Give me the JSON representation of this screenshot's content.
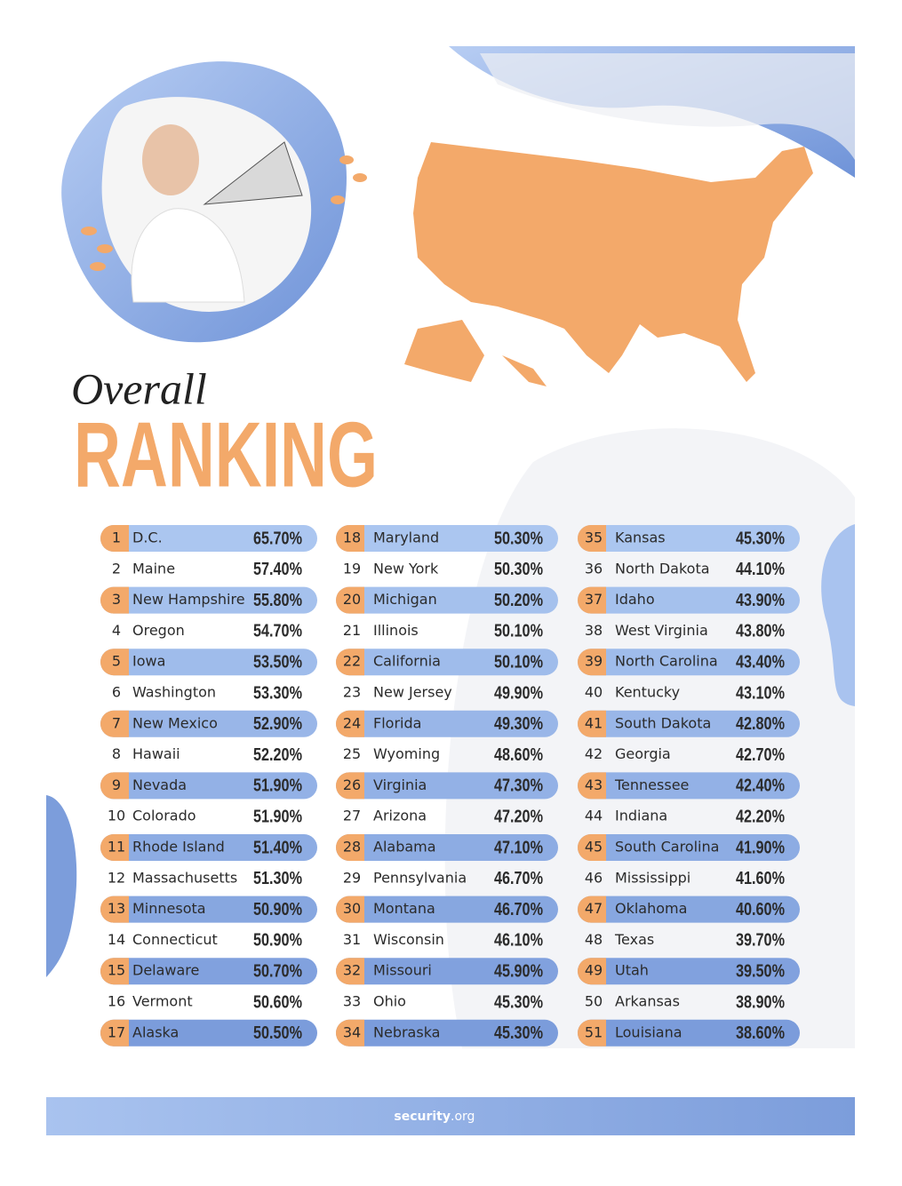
{
  "header": {
    "title_line1": "Overall",
    "title_line2": "RANKING"
  },
  "table": {
    "rows": [
      {
        "rank": 1,
        "state": "D.C.",
        "score": "65.70%"
      },
      {
        "rank": 2,
        "state": "Maine",
        "score": "57.40%"
      },
      {
        "rank": 3,
        "state": "New Hampshire",
        "score": "55.80%"
      },
      {
        "rank": 4,
        "state": "Oregon",
        "score": "54.70%"
      },
      {
        "rank": 5,
        "state": "Iowa",
        "score": "53.50%"
      },
      {
        "rank": 6,
        "state": "Washington",
        "score": "53.30%"
      },
      {
        "rank": 7,
        "state": "New Mexico",
        "score": "52.90%"
      },
      {
        "rank": 8,
        "state": "Hawaii",
        "score": "52.20%"
      },
      {
        "rank": 9,
        "state": "Nevada",
        "score": "51.90%"
      },
      {
        "rank": 10,
        "state": "Colorado",
        "score": "51.90%"
      },
      {
        "rank": 11,
        "state": "Rhode Island",
        "score": "51.40%"
      },
      {
        "rank": 12,
        "state": "Massachusetts",
        "score": "51.30%"
      },
      {
        "rank": 13,
        "state": "Minnesota",
        "score": "50.90%"
      },
      {
        "rank": 14,
        "state": "Connecticut",
        "score": "50.90%"
      },
      {
        "rank": 15,
        "state": "Delaware",
        "score": "50.70%"
      },
      {
        "rank": 16,
        "state": "Vermont",
        "score": "50.60%"
      },
      {
        "rank": 17,
        "state": "Alaska",
        "score": "50.50%"
      },
      {
        "rank": 18,
        "state": "Maryland",
        "score": "50.30%"
      },
      {
        "rank": 19,
        "state": "New York",
        "score": "50.30%"
      },
      {
        "rank": 20,
        "state": "Michigan",
        "score": "50.20%"
      },
      {
        "rank": 21,
        "state": "Illinois",
        "score": "50.10%"
      },
      {
        "rank": 22,
        "state": "California",
        "score": "50.10%"
      },
      {
        "rank": 23,
        "state": "New Jersey",
        "score": "49.90%"
      },
      {
        "rank": 24,
        "state": "Florida",
        "score": "49.30%"
      },
      {
        "rank": 25,
        "state": "Wyoming",
        "score": "48.60%"
      },
      {
        "rank": 26,
        "state": "Virginia",
        "score": "47.30%"
      },
      {
        "rank": 27,
        "state": "Arizona",
        "score": "47.20%"
      },
      {
        "rank": 28,
        "state": "Alabama",
        "score": "47.10%"
      },
      {
        "rank": 29,
        "state": "Pennsylvania",
        "score": "46.70%"
      },
      {
        "rank": 30,
        "state": "Montana",
        "score": "46.70%"
      },
      {
        "rank": 31,
        "state": "Wisconsin",
        "score": "46.10%"
      },
      {
        "rank": 32,
        "state": "Missouri",
        "score": "45.90%"
      },
      {
        "rank": 33,
        "state": "Ohio",
        "score": "45.30%"
      },
      {
        "rank": 34,
        "state": "Nebraska",
        "score": "45.30%"
      },
      {
        "rank": 35,
        "state": "Kansas",
        "score": "45.30%"
      },
      {
        "rank": 36,
        "state": "North Dakota",
        "score": "44.10%"
      },
      {
        "rank": 37,
        "state": "Idaho",
        "score": "43.90%"
      },
      {
        "rank": 38,
        "state": "West Virginia",
        "score": "43.80%"
      },
      {
        "rank": 39,
        "state": "North Carolina",
        "score": "43.40%"
      },
      {
        "rank": 40,
        "state": "Kentucky",
        "score": "43.10%"
      },
      {
        "rank": 41,
        "state": "South Dakota",
        "score": "42.80%"
      },
      {
        "rank": 42,
        "state": "Georgia",
        "score": "42.70%"
      },
      {
        "rank": 43,
        "state": "Tennessee",
        "score": "42.40%"
      },
      {
        "rank": 44,
        "state": "Indiana",
        "score": "42.20%"
      },
      {
        "rank": 45,
        "state": "South Carolina",
        "score": "41.90%"
      },
      {
        "rank": 46,
        "state": "Mississippi",
        "score": "41.60%"
      },
      {
        "rank": 47,
        "state": "Oklahoma",
        "score": "40.60%"
      },
      {
        "rank": 48,
        "state": "Texas",
        "score": "39.70%"
      },
      {
        "rank": 49,
        "state": "Utah",
        "score": "39.50%"
      },
      {
        "rank": 50,
        "state": "Arkansas",
        "score": "38.90%"
      },
      {
        "rank": 51,
        "state": "Louisiana",
        "score": "38.60%"
      }
    ]
  },
  "footer": {
    "brand": "security",
    "suffix": ".org"
  }
}
